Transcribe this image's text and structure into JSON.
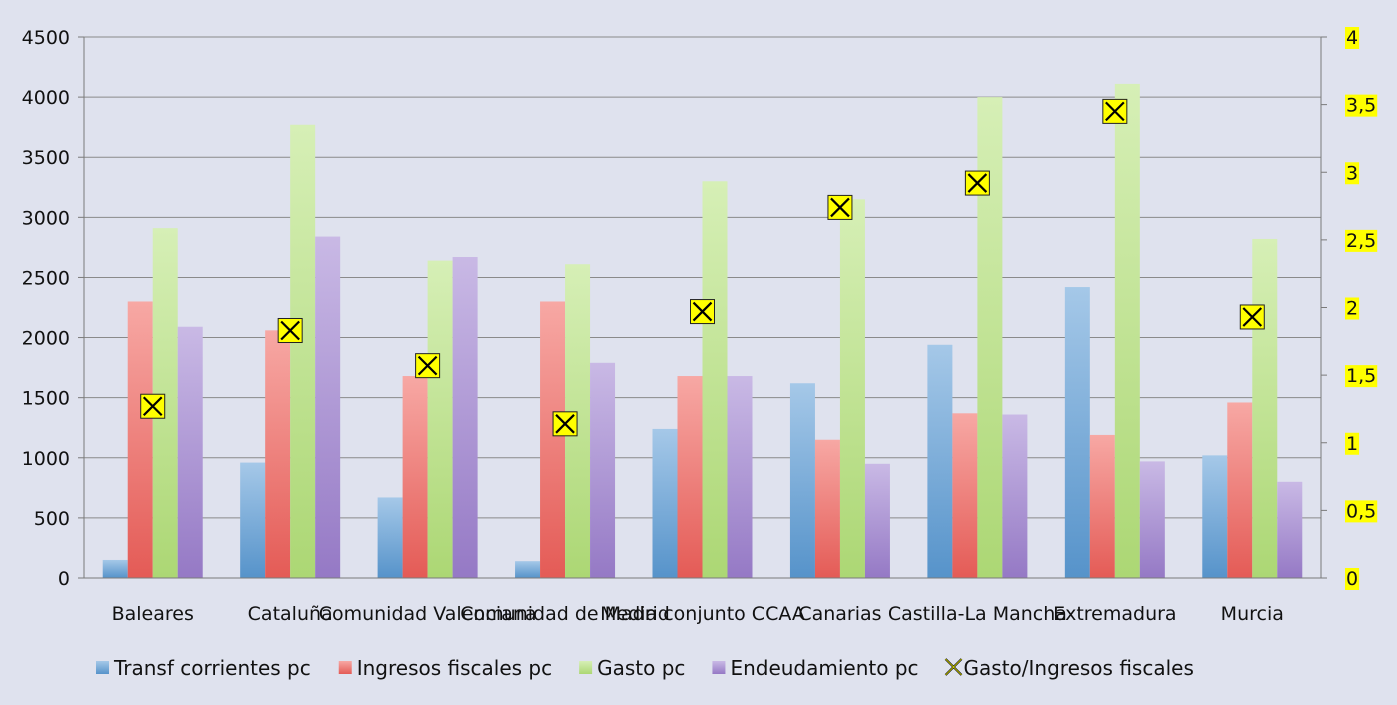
{
  "chart_data": {
    "type": "bar",
    "categories": [
      "Baleares",
      "Cataluña",
      "Comunidad Valenciana",
      "Comunidad de Madrid",
      "Media conjunto CCAA",
      "Canarias",
      "Castilla-La Mancha",
      "Extremadura",
      "Murcia"
    ],
    "series": [
      {
        "name": "Transf corrientes pc",
        "axis": "left",
        "color": "#5b9bd5",
        "values": [
          150,
          960,
          670,
          140,
          1240,
          1620,
          1940,
          2420,
          1020
        ]
      },
      {
        "name": "Ingresos fiscales pc",
        "axis": "left",
        "color": "#f0605a",
        "values": [
          2300,
          2060,
          1680,
          2300,
          1680,
          1150,
          1370,
          1190,
          1460
        ]
      },
      {
        "name": "Gasto pc",
        "axis": "left",
        "color": "#b5e27a",
        "values": [
          2910,
          3770,
          2640,
          2610,
          3300,
          3150,
          4000,
          4110,
          2820
        ]
      },
      {
        "name": "Endeudamiento pc",
        "axis": "left",
        "color": "#9d7fcf",
        "values": [
          2090,
          2840,
          2670,
          1790,
          1680,
          950,
          1360,
          970,
          800
        ]
      },
      {
        "name": "Gasto/Ingresos fiscales",
        "axis": "right",
        "type": "scatter",
        "marker": "x",
        "color": "#ffff00",
        "values": [
          1.27,
          1.83,
          1.57,
          1.14,
          1.97,
          2.74,
          2.92,
          3.45,
          1.93
        ]
      }
    ],
    "y_axis": {
      "min": 0,
      "max": 4500,
      "ticks": [
        "0",
        "500",
        "1000",
        "1500",
        "2000",
        "2500",
        "3000",
        "3500",
        "4000",
        "4500"
      ]
    },
    "y2_axis": {
      "min": 0,
      "max": 4,
      "ticks": [
        "0",
        "0,5",
        "1",
        "1,5",
        "2",
        "2,5",
        "3",
        "3,5",
        "4"
      ],
      "tick_highlight": "#ffff00"
    },
    "grid": true,
    "legend_position": "bottom",
    "title": "",
    "xlabel": "",
    "ylabel": ""
  }
}
